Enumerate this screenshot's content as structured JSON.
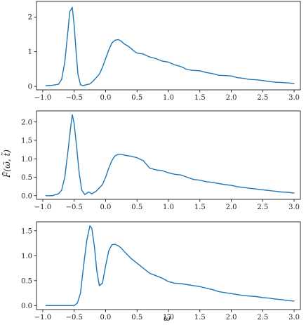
{
  "figure": {
    "ylabel": "F̄(ω̃, t̃)",
    "xlabel": "ω̃"
  },
  "colors": {
    "line": "#1f77b4",
    "axes": "#000000"
  },
  "chart_data": [
    {
      "type": "line",
      "xlim": [
        -1.1,
        3.1
      ],
      "ylim": [
        -0.1,
        2.45
      ],
      "xticks": [
        -1.0,
        -0.5,
        0.0,
        0.5,
        1.0,
        1.5,
        2.0,
        2.5,
        3.0
      ],
      "xtick_labels": [
        "−1.0",
        "−0.5",
        "0.0",
        "0.5",
        "1.0",
        "1.5",
        "2.0",
        "2.5",
        "3.0"
      ],
      "yticks": [
        0,
        1,
        2
      ],
      "ytick_labels": [
        "0",
        "1",
        "2"
      ],
      "series": [
        {
          "x": [
            -0.95,
            -0.85,
            -0.75,
            -0.7,
            -0.65,
            -0.6,
            -0.57,
            -0.53,
            -0.5,
            -0.47,
            -0.44,
            -0.4,
            -0.36,
            -0.3,
            -0.25,
            -0.2,
            -0.1,
            -0.05,
            0.0,
            0.05,
            0.1,
            0.15,
            0.2,
            0.25,
            0.3,
            0.35,
            0.4,
            0.45,
            0.5,
            0.6,
            0.7,
            0.8,
            0.9,
            1.0,
            1.1,
            1.2,
            1.3,
            1.4,
            1.5,
            1.6,
            1.7,
            1.8,
            1.9,
            2.0,
            2.1,
            2.2,
            2.3,
            2.4,
            2.5,
            2.6,
            2.7,
            2.8,
            2.9,
            3.0
          ],
          "y": [
            0.02,
            0.03,
            0.06,
            0.2,
            0.7,
            1.6,
            2.15,
            2.28,
            1.75,
            1.0,
            0.35,
            0.05,
            0.02,
            0.05,
            0.07,
            0.15,
            0.35,
            0.55,
            0.8,
            1.05,
            1.25,
            1.33,
            1.35,
            1.3,
            1.22,
            1.17,
            1.1,
            1.02,
            0.96,
            0.93,
            0.85,
            0.8,
            0.73,
            0.7,
            0.62,
            0.57,
            0.48,
            0.46,
            0.45,
            0.4,
            0.37,
            0.32,
            0.31,
            0.3,
            0.25,
            0.23,
            0.2,
            0.19,
            0.17,
            0.14,
            0.12,
            0.11,
            0.1,
            0.08
          ]
        }
      ]
    },
    {
      "type": "line",
      "xlim": [
        -1.1,
        3.1
      ],
      "ylim": [
        -0.1,
        2.3
      ],
      "xticks": [
        -1.0,
        -0.5,
        0.0,
        0.5,
        1.0,
        1.5,
        2.0,
        2.5,
        3.0
      ],
      "xtick_labels": [
        "−1.0",
        "−0.5",
        "0.0",
        "0.5",
        "1.0",
        "1.5",
        "2.0",
        "2.5",
        "3.0"
      ],
      "yticks": [
        0.0,
        0.5,
        1.0,
        1.5,
        2.0
      ],
      "ytick_labels": [
        "0.0",
        "0.5",
        "1.0",
        "1.5",
        "2.0"
      ],
      "series": [
        {
          "x": [
            -0.95,
            -0.85,
            -0.75,
            -0.7,
            -0.65,
            -0.6,
            -0.56,
            -0.53,
            -0.5,
            -0.46,
            -0.42,
            -0.38,
            -0.33,
            -0.27,
            -0.22,
            -0.15,
            -0.05,
            0.0,
            0.05,
            0.1,
            0.15,
            0.2,
            0.25,
            0.3,
            0.4,
            0.5,
            0.6,
            0.7,
            0.8,
            0.9,
            1.0,
            1.1,
            1.2,
            1.3,
            1.4,
            1.5,
            1.6,
            1.7,
            1.8,
            1.9,
            2.0,
            2.1,
            2.2,
            2.3,
            2.4,
            2.5,
            2.6,
            2.7,
            2.8,
            2.9,
            3.0
          ],
          "y": [
            0.0,
            0.0,
            0.05,
            0.15,
            0.5,
            1.2,
            1.8,
            2.2,
            1.95,
            1.3,
            0.6,
            0.15,
            0.03,
            0.1,
            0.05,
            0.12,
            0.3,
            0.5,
            0.75,
            0.95,
            1.08,
            1.12,
            1.12,
            1.1,
            1.07,
            1.03,
            0.95,
            0.75,
            0.7,
            0.68,
            0.62,
            0.58,
            0.56,
            0.5,
            0.44,
            0.42,
            0.38,
            0.36,
            0.33,
            0.3,
            0.28,
            0.24,
            0.22,
            0.2,
            0.18,
            0.16,
            0.14,
            0.12,
            0.1,
            0.09,
            0.07
          ]
        }
      ]
    },
    {
      "type": "line",
      "xlim": [
        -1.1,
        3.1
      ],
      "ylim": [
        -0.08,
        1.68
      ],
      "xticks": [
        -1.0,
        -0.5,
        0.0,
        0.5,
        1.0,
        1.5,
        2.0,
        2.5,
        3.0
      ],
      "xtick_labels": [
        "−1.0",
        "−0.5",
        "0.0",
        "0.5",
        "1.0",
        "1.5",
        "2.0",
        "2.5",
        "3.0"
      ],
      "yticks": [
        0.0,
        0.5,
        1.0,
        1.5
      ],
      "ytick_labels": [
        "0.0",
        "0.5",
        "1.0",
        "1.5"
      ],
      "series": [
        {
          "x": [
            -0.95,
            -0.8,
            -0.6,
            -0.5,
            -0.45,
            -0.4,
            -0.35,
            -0.3,
            -0.25,
            -0.22,
            -0.18,
            -0.14,
            -0.1,
            -0.05,
            0.0,
            0.05,
            0.1,
            0.15,
            0.2,
            0.25,
            0.3,
            0.4,
            0.5,
            0.6,
            0.7,
            0.8,
            0.9,
            1.0,
            1.1,
            1.2,
            1.3,
            1.4,
            1.5,
            1.6,
            1.7,
            1.8,
            1.9,
            2.0,
            2.1,
            2.2,
            2.3,
            2.4,
            2.5,
            2.6,
            2.7,
            2.8,
            2.9,
            3.0
          ],
          "y": [
            0.0,
            0.0,
            0.0,
            0.0,
            0.05,
            0.25,
            0.8,
            1.3,
            1.6,
            1.55,
            1.2,
            0.7,
            0.4,
            0.45,
            0.8,
            1.1,
            1.22,
            1.23,
            1.2,
            1.15,
            1.08,
            0.95,
            0.85,
            0.75,
            0.65,
            0.6,
            0.55,
            0.48,
            0.45,
            0.44,
            0.42,
            0.4,
            0.38,
            0.35,
            0.32,
            0.28,
            0.26,
            0.24,
            0.22,
            0.2,
            0.19,
            0.18,
            0.16,
            0.15,
            0.13,
            0.12,
            0.1,
            0.09
          ]
        }
      ]
    }
  ]
}
